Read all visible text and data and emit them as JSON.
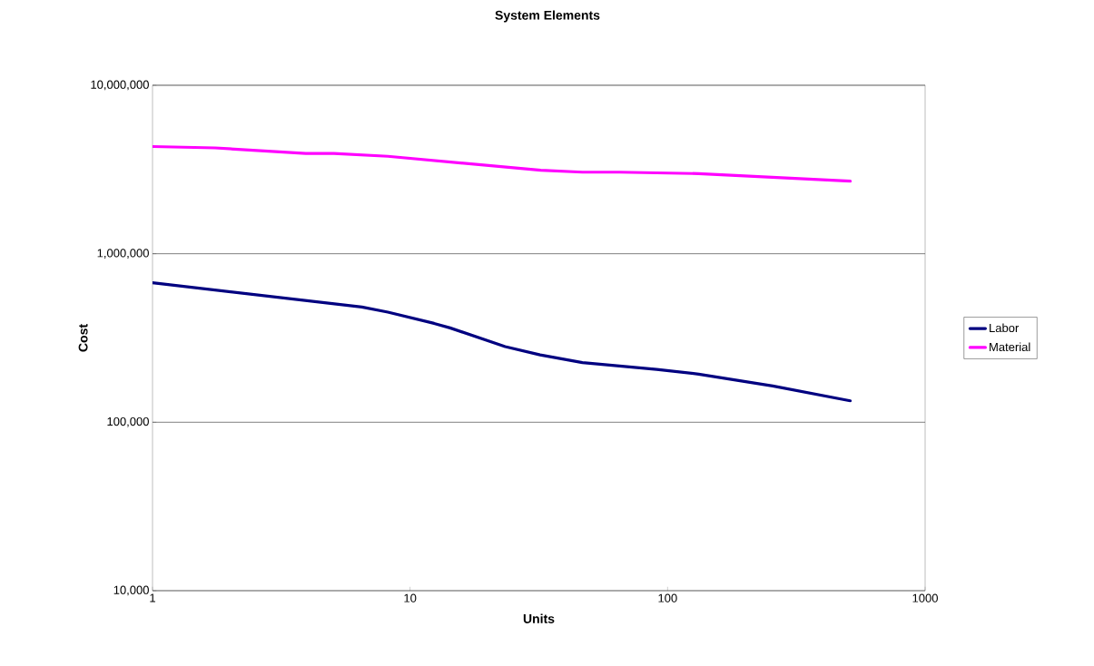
{
  "chart_data": {
    "type": "line",
    "title": "System Elements",
    "xlabel": "Units",
    "ylabel": "Cost",
    "log": "xy",
    "grid": "y",
    "legend": "right",
    "marker": "none",
    "line_style": "solid",
    "xlim": [
      1,
      1000
    ],
    "xticks": [
      1,
      10,
      100,
      1000
    ],
    "ylim": [
      10000,
      10000000
    ],
    "yticks": [
      {
        "value": 10000,
        "label": "10,000"
      },
      {
        "value": 100000,
        "label": "100,000"
      },
      {
        "value": 1000000,
        "label": "1,000,000"
      },
      {
        "value": 10000000,
        "label": "10,000,000"
      }
    ],
    "series": [
      {
        "name": "Labor",
        "color": "#000080",
        "x": [
          1,
          6.5,
          8.2,
          12.4,
          14.3,
          23.4,
          32,
          46.7,
          90.7,
          132,
          256,
          512
        ],
        "values": [
          673000,
          483000,
          450000,
          386000,
          363000,
          281000,
          251000,
          226000,
          206000,
          193000,
          164000,
          134000
        ]
      },
      {
        "name": "Material",
        "color": "#ff00ff",
        "x": [
          1,
          1.75,
          3.94,
          5.06,
          8.2,
          32.2,
          46.7,
          65,
          132,
          512
        ],
        "values": [
          4330000,
          4250000,
          3940000,
          3940000,
          3790000,
          3130000,
          3050000,
          3050000,
          2990000,
          2700000
        ]
      }
    ]
  }
}
